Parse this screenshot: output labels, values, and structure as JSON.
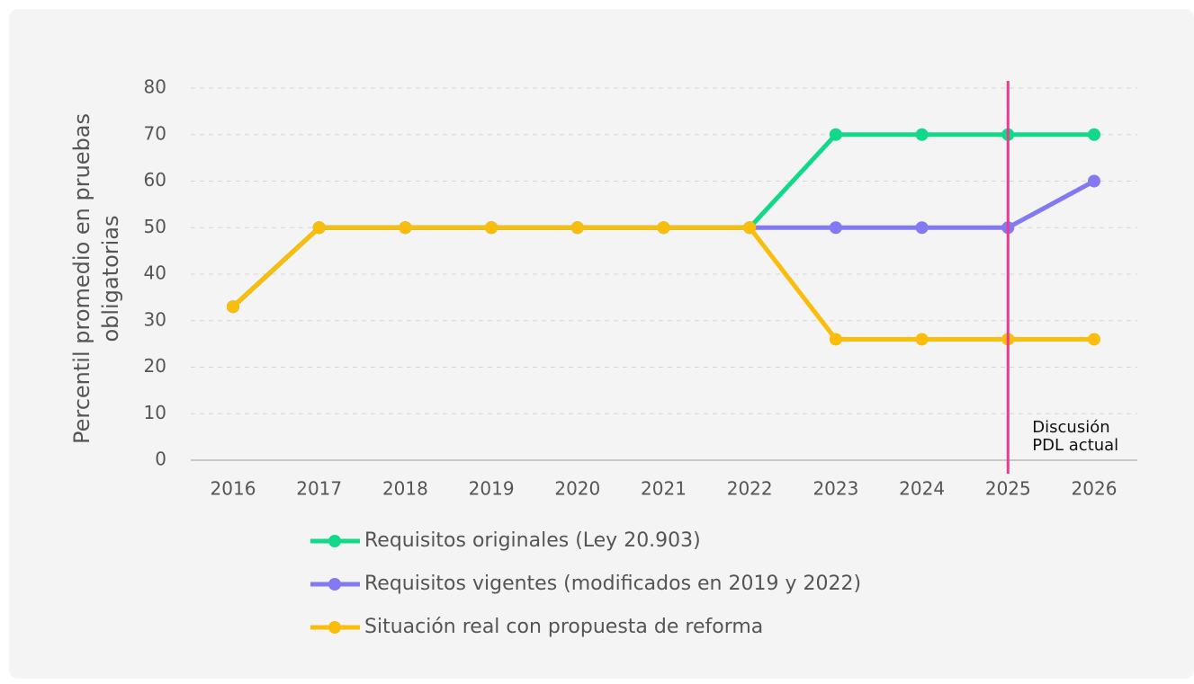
{
  "chart_data": {
    "type": "line",
    "y_label": [
      "Percentil promedio en pruebas",
      "obligatorias"
    ],
    "categories": [
      "2016",
      "2017",
      "2018",
      "2019",
      "2020",
      "2021",
      "2022",
      "2023",
      "2024",
      "2025",
      "2026"
    ],
    "series": [
      {
        "name": "Requisitos vigentes (modificados en 2019 y 2022)",
        "color": "#8379f2",
        "values": [
          33,
          50,
          50,
          50,
          50,
          50,
          50,
          50,
          50,
          50,
          60
        ]
      },
      {
        "name": "Requisitos originales (Ley 20.903)",
        "color": "#12d98a",
        "values": [
          33,
          50,
          50,
          50,
          50,
          50,
          50,
          70,
          70,
          70,
          70
        ]
      },
      {
        "name": "Situación real con propuesta de reforma",
        "color": "#fbbd0c",
        "values": [
          33,
          50,
          50,
          50,
          50,
          50,
          50,
          26,
          26,
          26,
          26
        ]
      }
    ],
    "legend_order": [
      1,
      0,
      2
    ],
    "ylim": [
      0,
      80
    ],
    "yticks": [
      0,
      10,
      20,
      30,
      40,
      50,
      60,
      70,
      80
    ],
    "grid": true,
    "annotations": [
      {
        "x": "2025",
        "color": "#ec3a8c",
        "text_lines": [
          "Discusión",
          "PDL actual"
        ]
      }
    ]
  }
}
